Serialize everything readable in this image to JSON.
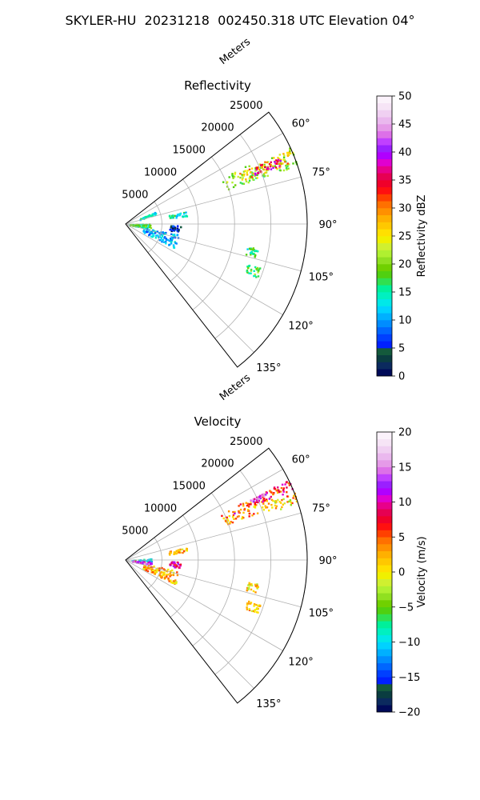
{
  "figure": {
    "suptitle": "SKYLER-HU  20231218  002450.318 UTC Elevation 04°"
  },
  "chart_data": [
    {
      "type": "heatmap",
      "title": "Reflectivity",
      "range_label": "Meters",
      "range_ticks": [
        5000,
        10000,
        15000,
        20000,
        25000
      ],
      "range_tick_labels": [
        "5000",
        "10000",
        "15000",
        "20000",
        "25000"
      ],
      "azimuth_ticks": [
        60,
        75,
        90,
        105,
        120,
        135
      ],
      "azimuth_tick_labels": [
        "60°",
        "75°",
        "90°",
        "105°",
        "120°",
        "135°"
      ],
      "azimuth_range": [
        52,
        142
      ],
      "range_max": 25000,
      "grid": true,
      "colorbar": {
        "label": "Reflectivity dBZ",
        "vmin": 0,
        "vmax": 50,
        "ticks": [
          0,
          5,
          10,
          15,
          20,
          25,
          30,
          35,
          40,
          45,
          50
        ],
        "tick_labels": [
          "0",
          "5",
          "10",
          "15",
          "20",
          "25",
          "30",
          "35",
          "40",
          "45",
          "50"
        ],
        "colors": [
          "#000a58",
          "#0b2a5e",
          "#0a3d40",
          "#145a3c",
          "#0020ff",
          "#0040ff",
          "#0066ff",
          "#008cff",
          "#00b0ff",
          "#00d2ff",
          "#00e8e8",
          "#00f0c0",
          "#00f09a",
          "#30e050",
          "#50d010",
          "#70d000",
          "#90e020",
          "#b0f030",
          "#d0f030",
          "#f0f000",
          "#ffe000",
          "#ffc800",
          "#ffb000",
          "#ff9000",
          "#ff7000",
          "#ff4000",
          "#ff1010",
          "#f0002a",
          "#e60052",
          "#e8008a",
          "#e000d0",
          "#b000ff",
          "#9a20ff",
          "#c040ff",
          "#dd70e8",
          "#e59ae8",
          "#eab8ee",
          "#f0d0f2",
          "#f6e4f6",
          "#fbf2fb"
        ]
      },
      "echoes": [
        {
          "az": [
            64,
            71
          ],
          "r": [
            14500,
            27500
          ],
          "value": 20
        },
        {
          "az": [
            65.5,
            69.5
          ],
          "r": [
            17000,
            24000
          ],
          "value": 28
        },
        {
          "az": [
            66,
            69
          ],
          "r": [
            19000,
            23000
          ],
          "value": 36
        },
        {
          "az": [
            65,
            67
          ],
          "r": [
            24000,
            27000
          ],
          "value": 26
        },
        {
          "az": [
            67,
            71
          ],
          "r": [
            2000,
            4500
          ],
          "value": 14
        },
        {
          "az": [
            88,
            100
          ],
          "r": [
            500,
            3500
          ],
          "value": 17
        },
        {
          "az": [
            101,
            116
          ],
          "r": [
            2500,
            7500
          ],
          "value": 11
        },
        {
          "az": [
            78,
            82
          ],
          "r": [
            6000,
            8500
          ],
          "value": 14
        },
        {
          "az": [
            91,
            98
          ],
          "r": [
            6000,
            7500
          ],
          "value": 4
        },
        {
          "az": [
            100,
            104
          ],
          "r": [
            17000,
            18500
          ],
          "value": 16
        },
        {
          "az": [
            108,
            112
          ],
          "r": [
            17500,
            19500
          ],
          "value": 18
        }
      ]
    },
    {
      "type": "heatmap",
      "title": "Velocity",
      "range_label": "Meters",
      "range_ticks": [
        5000,
        10000,
        15000,
        20000,
        25000
      ],
      "range_tick_labels": [
        "5000",
        "10000",
        "15000",
        "20000",
        "25000"
      ],
      "azimuth_ticks": [
        60,
        75,
        90,
        105,
        120,
        135
      ],
      "azimuth_tick_labels": [
        "60°",
        "75°",
        "90°",
        "105°",
        "120°",
        "135°"
      ],
      "azimuth_range": [
        52,
        142
      ],
      "range_max": 25000,
      "grid": true,
      "colorbar": {
        "label": "Velocity (m/s)",
        "vmin": -20,
        "vmax": 20,
        "ticks": [
          -20,
          -15,
          -10,
          -5,
          0,
          5,
          10,
          15,
          20
        ],
        "tick_labels": [
          "−20",
          "−15",
          "−10",
          "−5",
          "0",
          "5",
          "10",
          "15",
          "20"
        ],
        "colors": [
          "#000a58",
          "#0b2a5e",
          "#0a3d40",
          "#145a3c",
          "#0020ff",
          "#0040ff",
          "#0066ff",
          "#008cff",
          "#00b0ff",
          "#00d2ff",
          "#00e8e8",
          "#00f0c0",
          "#00f09a",
          "#30e050",
          "#50d010",
          "#70d000",
          "#90e020",
          "#b0f030",
          "#d0f030",
          "#f0f000",
          "#ffe000",
          "#ffc800",
          "#ffb000",
          "#ff9000",
          "#ff7000",
          "#ff4000",
          "#ff1010",
          "#f0002a",
          "#e60052",
          "#e8008a",
          "#e000d0",
          "#b000ff",
          "#9a20ff",
          "#c040ff",
          "#dd70e8",
          "#e59ae8",
          "#eab8ee",
          "#f0d0f2",
          "#f6e4f6",
          "#fbf2fb"
        ]
      },
      "echoes": [
        {
          "az": [
            64,
            71
          ],
          "r": [
            14500,
            27500
          ],
          "value": 3
        },
        {
          "az": [
            63.5,
            67
          ],
          "r": [
            16000,
            26000
          ],
          "value": 8
        },
        {
          "az": [
            68,
            71.5
          ],
          "r": [
            22000,
            27500
          ],
          "value": 0
        },
        {
          "az": [
            64,
            65
          ],
          "r": [
            19000,
            21500
          ],
          "value": 13
        },
        {
          "az": [
            86,
            92
          ],
          "r": [
            800,
            3500
          ],
          "value": -9
        },
        {
          "az": [
            93,
            100
          ],
          "r": [
            800,
            3500
          ],
          "value": 13
        },
        {
          "az": [
            101,
            116
          ],
          "r": [
            2500,
            7500
          ],
          "value": 2
        },
        {
          "az": [
            78,
            82
          ],
          "r": [
            6000,
            8500
          ],
          "value": 2
        },
        {
          "az": [
            91,
            98
          ],
          "r": [
            6000,
            7500
          ],
          "value": 9
        },
        {
          "az": [
            100,
            104
          ],
          "r": [
            17000,
            18500
          ],
          "value": 1
        },
        {
          "az": [
            108,
            112
          ],
          "r": [
            17500,
            19500
          ],
          "value": 2
        }
      ]
    }
  ]
}
